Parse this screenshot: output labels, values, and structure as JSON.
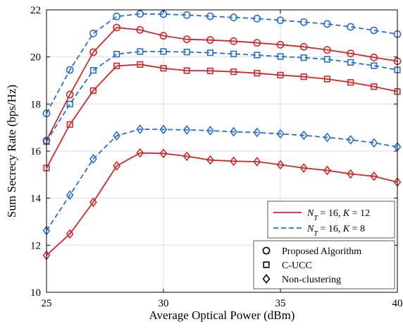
{
  "chart_data": {
    "type": "line",
    "title": "",
    "xlabel": "Average Optical Power (dBm)",
    "ylabel": "Sum Secrecy Rate (bps/Hz)",
    "xlim": [
      25,
      40
    ],
    "ylim": [
      10,
      22
    ],
    "xticks": [
      25,
      30,
      35,
      40
    ],
    "yticks": [
      10,
      12,
      14,
      16,
      18,
      20,
      22
    ],
    "grid": true,
    "x": [
      25,
      26,
      27,
      28,
      29,
      30,
      31,
      32,
      33,
      34,
      35,
      36,
      37,
      38,
      39,
      40
    ],
    "colors": {
      "k12": "#cc2a2a",
      "k8": "#2a6fc9"
    },
    "series": [
      {
        "group": "k12",
        "method": "proposed",
        "marker": "circle",
        "linestyle": "solid",
        "values": [
          16.45,
          18.4,
          20.2,
          21.25,
          21.15,
          20.9,
          20.75,
          20.72,
          20.67,
          20.6,
          20.52,
          20.43,
          20.3,
          20.15,
          19.98,
          19.82
        ]
      },
      {
        "group": "k12",
        "method": "c-ucc",
        "marker": "square",
        "linestyle": "solid",
        "values": [
          15.28,
          17.13,
          18.57,
          19.62,
          19.68,
          19.52,
          19.42,
          19.41,
          19.37,
          19.31,
          19.23,
          19.16,
          19.06,
          18.92,
          18.74,
          18.53
        ]
      },
      {
        "group": "k12",
        "method": "non-clustering",
        "marker": "diamond",
        "linestyle": "solid",
        "values": [
          11.57,
          12.48,
          13.83,
          15.37,
          15.92,
          15.9,
          15.78,
          15.62,
          15.57,
          15.55,
          15.42,
          15.28,
          15.18,
          15.03,
          14.93,
          14.68
        ]
      },
      {
        "group": "k8",
        "method": "proposed",
        "marker": "circle",
        "linestyle": "dashed",
        "values": [
          17.6,
          19.45,
          21.0,
          21.72,
          21.83,
          21.82,
          21.78,
          21.73,
          21.68,
          21.63,
          21.56,
          21.48,
          21.4,
          21.28,
          21.13,
          20.97
        ]
      },
      {
        "group": "k8",
        "method": "c-ucc",
        "marker": "square",
        "linestyle": "dashed",
        "values": [
          16.4,
          18.0,
          19.43,
          20.12,
          20.23,
          20.23,
          20.21,
          20.18,
          20.13,
          20.08,
          20.02,
          19.97,
          19.9,
          19.77,
          19.63,
          19.45
        ]
      },
      {
        "group": "k8",
        "method": "non-clustering",
        "marker": "diamond",
        "linestyle": "dashed",
        "values": [
          12.62,
          14.13,
          15.67,
          16.65,
          16.93,
          16.92,
          16.9,
          16.87,
          16.82,
          16.79,
          16.73,
          16.67,
          16.58,
          16.48,
          16.35,
          16.18
        ]
      }
    ],
    "legend_lines": [
      {
        "group": "k12",
        "linestyle": "solid",
        "nt": "16",
        "k": "12"
      },
      {
        "group": "k8",
        "linestyle": "dashed",
        "nt": "16",
        "k": "8"
      }
    ],
    "legend_markers": [
      {
        "marker": "circle",
        "label": "Proposed Algorithm"
      },
      {
        "marker": "square",
        "label": "C-UCC"
      },
      {
        "marker": "diamond",
        "label": "Non-clustering"
      }
    ],
    "legend_placement": "bottom-right"
  }
}
